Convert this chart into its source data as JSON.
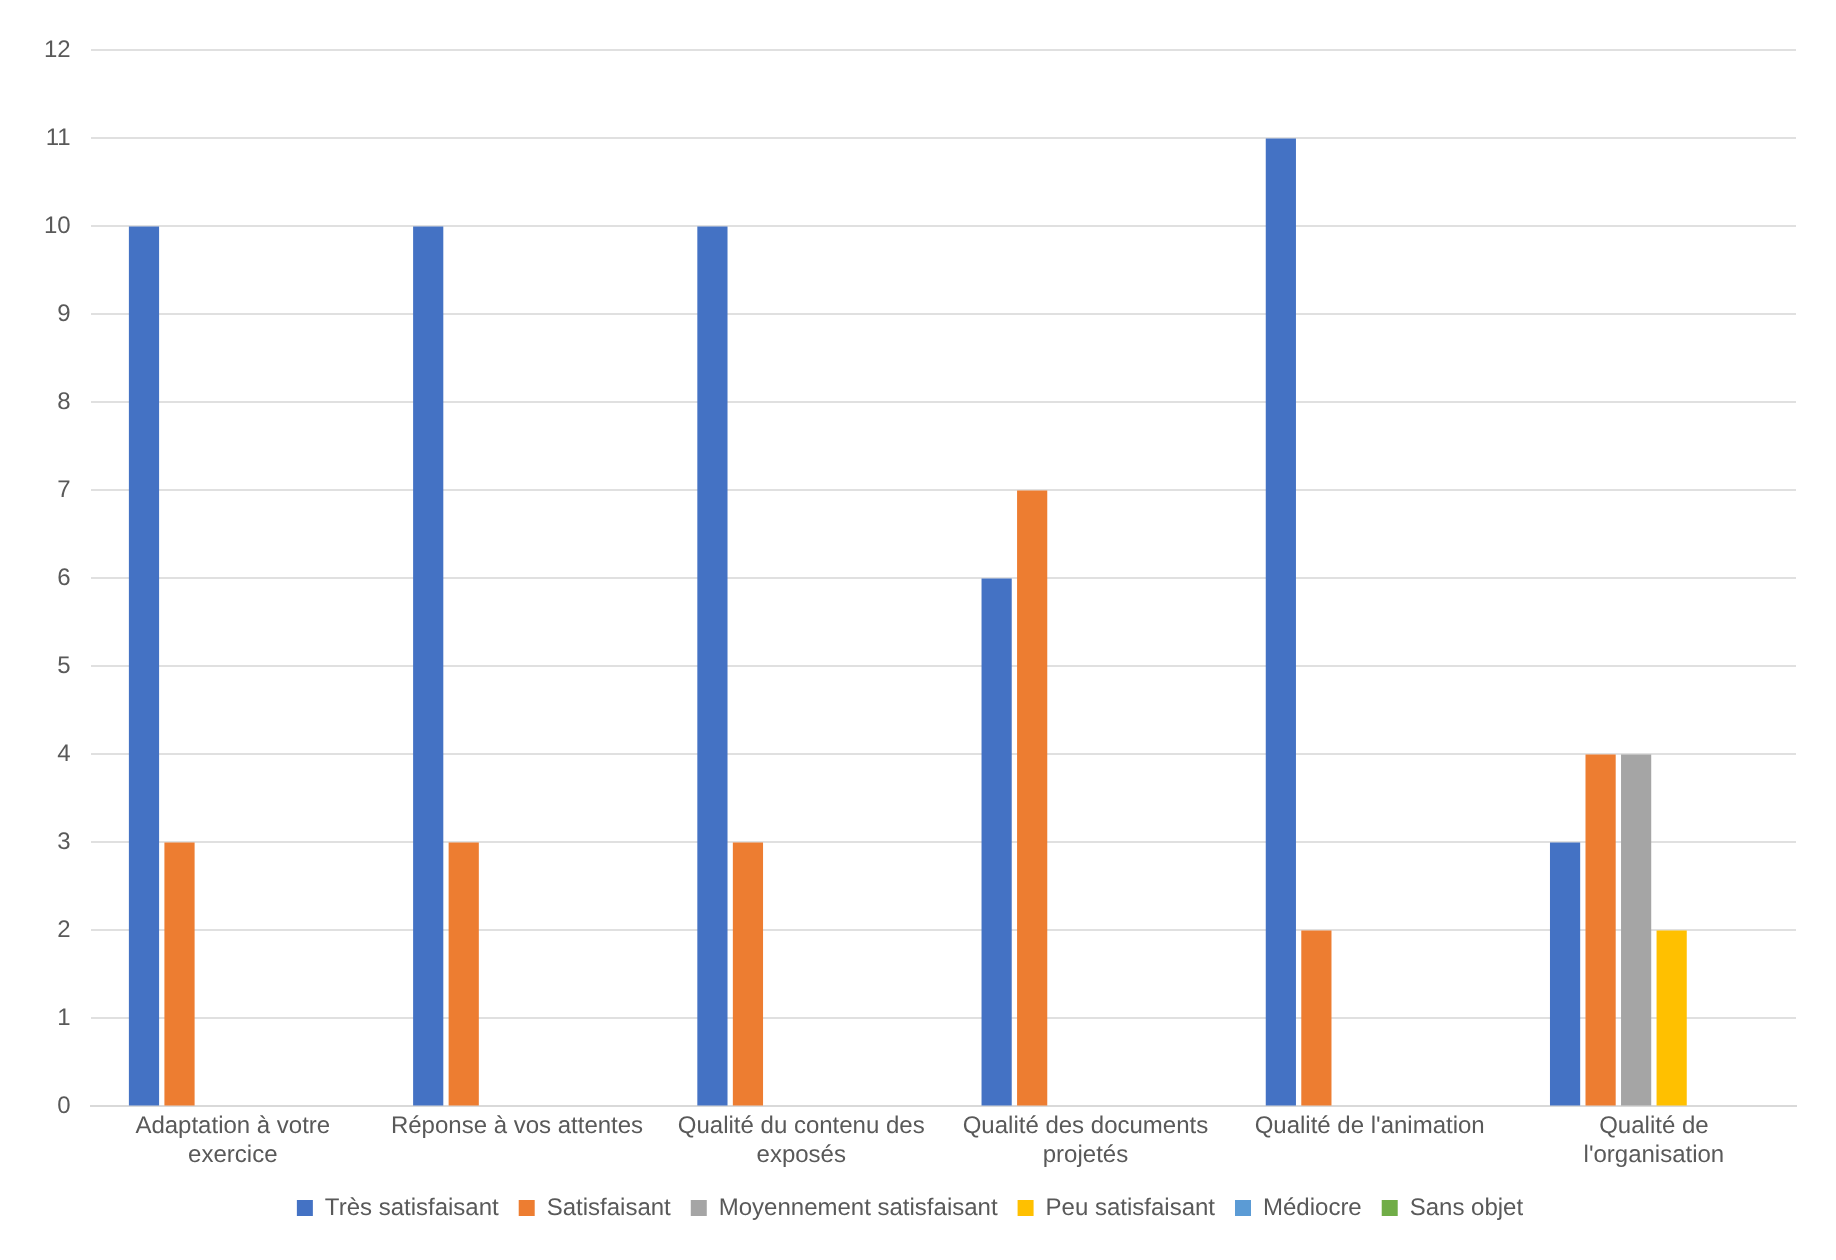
{
  "chart_data": {
    "type": "bar",
    "categories": [
      "Adaptation à votre exercice",
      "Réponse à vos attentes",
      "Qualité du contenu des exposés",
      "Qualité des documents projetés",
      "Qualité de l'animation",
      "Qualité de l'organisation"
    ],
    "series": [
      {
        "name": "Très satisfaisant",
        "color": "#4472c4",
        "values": [
          10,
          10,
          10,
          6,
          11,
          3
        ]
      },
      {
        "name": "Satisfaisant",
        "color": "#ed7d31",
        "values": [
          3,
          3,
          3,
          7,
          2,
          4
        ]
      },
      {
        "name": "Moyennement satisfaisant",
        "color": "#a5a5a5",
        "values": [
          0,
          0,
          0,
          0,
          0,
          4
        ]
      },
      {
        "name": "Peu satisfaisant",
        "color": "#ffc000",
        "values": [
          0,
          0,
          0,
          0,
          0,
          2
        ]
      },
      {
        "name": "Médiocre",
        "color": "#5b9bd5",
        "values": [
          0,
          0,
          0,
          0,
          0,
          0
        ]
      },
      {
        "name": "Sans objet",
        "color": "#70ad47",
        "values": [
          0,
          0,
          0,
          0,
          0,
          0
        ]
      }
    ],
    "ylim": [
      0,
      12
    ],
    "yticks": [
      0,
      1,
      2,
      3,
      4,
      5,
      6,
      7,
      8,
      9,
      10,
      11,
      12
    ],
    "grid": "y",
    "legend": "bottom"
  }
}
